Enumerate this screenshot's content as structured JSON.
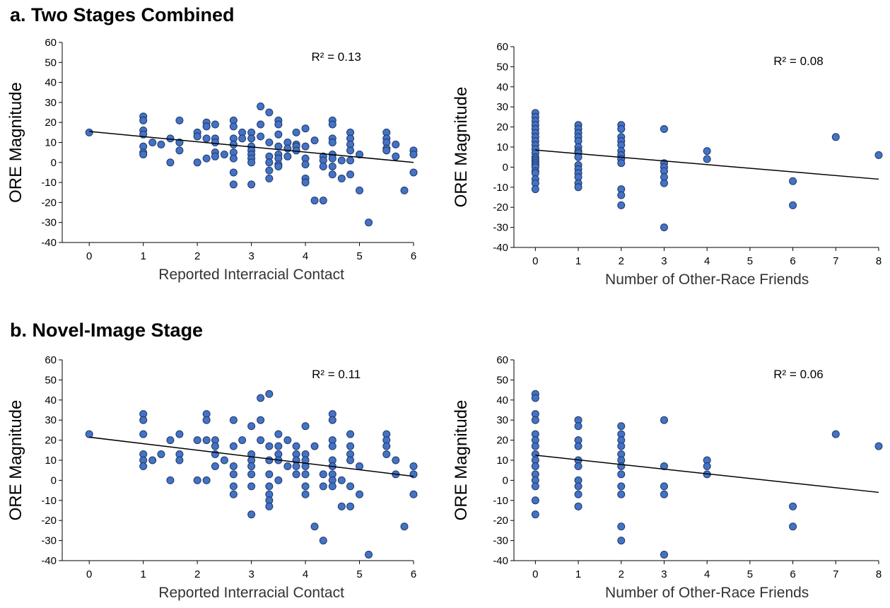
{
  "sections": [
    {
      "title": "a. Two Stages Combined"
    },
    {
      "title": "b. Novel-Image Stage"
    }
  ],
  "chart_data": [
    {
      "id": "a-left",
      "type": "scatter",
      "xlabel": "Reported Interracial Contact",
      "ylabel": "ORE Magnitude",
      "annotation": "R² = 0.13",
      "xlim": [
        -0.5,
        6
      ],
      "ylim": [
        -40,
        60
      ],
      "xticks": [
        0,
        1,
        2,
        3,
        4,
        5,
        6
      ],
      "yticks": [
        -40,
        -30,
        -20,
        -10,
        0,
        10,
        20,
        30,
        40,
        50,
        60
      ],
      "trendline": {
        "x": [
          0,
          6
        ],
        "y": [
          15.5,
          0
        ]
      },
      "marker_color": "#4472C4",
      "points": [
        [
          0,
          15
        ],
        [
          1,
          23
        ],
        [
          1,
          21
        ],
        [
          1,
          16
        ],
        [
          1,
          14
        ],
        [
          1,
          8
        ],
        [
          1,
          5
        ],
        [
          1,
          4
        ],
        [
          1.17,
          10
        ],
        [
          1.33,
          9
        ],
        [
          1.5,
          12
        ],
        [
          1.5,
          0
        ],
        [
          1.67,
          21
        ],
        [
          1.67,
          10
        ],
        [
          1.67,
          6
        ],
        [
          2,
          15
        ],
        [
          2,
          13
        ],
        [
          2,
          0
        ],
        [
          2.17,
          20
        ],
        [
          2.17,
          18
        ],
        [
          2.17,
          12
        ],
        [
          2.17,
          2
        ],
        [
          2.33,
          19
        ],
        [
          2.33,
          12
        ],
        [
          2.33,
          10
        ],
        [
          2.33,
          5
        ],
        [
          2.33,
          3
        ],
        [
          2.5,
          4
        ],
        [
          2.67,
          21
        ],
        [
          2.67,
          18
        ],
        [
          2.67,
          12
        ],
        [
          2.67,
          9
        ],
        [
          2.67,
          5
        ],
        [
          2.67,
          2
        ],
        [
          2.67,
          -5
        ],
        [
          2.67,
          -11
        ],
        [
          2.83,
          15
        ],
        [
          2.83,
          12
        ],
        [
          3,
          15
        ],
        [
          3,
          12
        ],
        [
          3,
          8
        ],
        [
          3,
          6
        ],
        [
          3,
          4
        ],
        [
          3,
          2
        ],
        [
          3,
          0
        ],
        [
          3,
          -11
        ],
        [
          3.17,
          28
        ],
        [
          3.17,
          19
        ],
        [
          3.17,
          13
        ],
        [
          3.33,
          25
        ],
        [
          3.33,
          10
        ],
        [
          3.33,
          3
        ],
        [
          3.33,
          0
        ],
        [
          3.33,
          -4
        ],
        [
          3.33,
          -8
        ],
        [
          3.5,
          21
        ],
        [
          3.5,
          19
        ],
        [
          3.5,
          14
        ],
        [
          3.5,
          8
        ],
        [
          3.5,
          4
        ],
        [
          3.5,
          2
        ],
        [
          3.5,
          -1
        ],
        [
          3.5,
          -2
        ],
        [
          3.67,
          10
        ],
        [
          3.67,
          7
        ],
        [
          3.67,
          3
        ],
        [
          3.83,
          15
        ],
        [
          3.83,
          9
        ],
        [
          3.83,
          8
        ],
        [
          3.83,
          6
        ],
        [
          4,
          17
        ],
        [
          4,
          8
        ],
        [
          4,
          2
        ],
        [
          4,
          -1
        ],
        [
          4,
          -8
        ],
        [
          4,
          -10
        ],
        [
          4.17,
          11
        ],
        [
          4.17,
          -19
        ],
        [
          4.33,
          3
        ],
        [
          4.33,
          1
        ],
        [
          4.33,
          -2
        ],
        [
          4.33,
          -19
        ],
        [
          4.5,
          21
        ],
        [
          4.5,
          19
        ],
        [
          4.5,
          12
        ],
        [
          4.5,
          10
        ],
        [
          4.5,
          4
        ],
        [
          4.5,
          2
        ],
        [
          4.5,
          -2
        ],
        [
          4.5,
          -6
        ],
        [
          4.67,
          1
        ],
        [
          4.67,
          -8
        ],
        [
          4.83,
          15
        ],
        [
          4.83,
          12
        ],
        [
          4.83,
          9
        ],
        [
          4.83,
          6
        ],
        [
          4.83,
          1
        ],
        [
          4.83,
          -6
        ],
        [
          5,
          4
        ],
        [
          5,
          -14
        ],
        [
          5.17,
          -30
        ],
        [
          5.5,
          15
        ],
        [
          5.5,
          12
        ],
        [
          5.5,
          10
        ],
        [
          5.5,
          7
        ],
        [
          5.5,
          6
        ],
        [
          5.67,
          9
        ],
        [
          5.67,
          3
        ],
        [
          5.83,
          -14
        ],
        [
          6,
          6
        ],
        [
          6,
          4
        ],
        [
          6,
          -5
        ]
      ]
    },
    {
      "id": "a-right",
      "type": "scatter",
      "xlabel": "Number of Other-Race Friends",
      "ylabel": "ORE Magnitude",
      "annotation": "R² = 0.08",
      "xlim": [
        -0.5,
        8
      ],
      "ylim": [
        -40,
        60
      ],
      "xticks": [
        0,
        1,
        2,
        3,
        4,
        5,
        6,
        7,
        8
      ],
      "yticks": [
        -40,
        -30,
        -20,
        -10,
        0,
        10,
        20,
        30,
        40,
        50,
        60
      ],
      "trendline": {
        "x": [
          0,
          8
        ],
        "y": [
          8.5,
          -6
        ]
      },
      "marker_color": "#4472C4",
      "points": [
        [
          0,
          27
        ],
        [
          0,
          25
        ],
        [
          0,
          23
        ],
        [
          0,
          21
        ],
        [
          0,
          19
        ],
        [
          0,
          17
        ],
        [
          0,
          15
        ],
        [
          0,
          13
        ],
        [
          0,
          11
        ],
        [
          0,
          9
        ],
        [
          0,
          7
        ],
        [
          0,
          5
        ],
        [
          0,
          4
        ],
        [
          0,
          3
        ],
        [
          0,
          2
        ],
        [
          0,
          1
        ],
        [
          0,
          0
        ],
        [
          0,
          -2
        ],
        [
          0,
          -3
        ],
        [
          0,
          -6
        ],
        [
          0,
          -8
        ],
        [
          0,
          -11
        ],
        [
          1,
          21
        ],
        [
          1,
          19
        ],
        [
          1,
          17
        ],
        [
          1,
          15
        ],
        [
          1,
          13
        ],
        [
          1,
          10
        ],
        [
          1,
          8
        ],
        [
          1,
          7
        ],
        [
          1,
          5
        ],
        [
          1,
          1
        ],
        [
          1,
          -1
        ],
        [
          1,
          -3
        ],
        [
          1,
          -5
        ],
        [
          1,
          -8
        ],
        [
          1,
          -10
        ],
        [
          2,
          21
        ],
        [
          2,
          19
        ],
        [
          2,
          15
        ],
        [
          2,
          13
        ],
        [
          2,
          11
        ],
        [
          2,
          8
        ],
        [
          2,
          6
        ],
        [
          2,
          4
        ],
        [
          2,
          2
        ],
        [
          2,
          -11
        ],
        [
          2,
          -14
        ],
        [
          2,
          -19
        ],
        [
          3,
          19
        ],
        [
          3,
          2
        ],
        [
          3,
          0
        ],
        [
          3,
          -2
        ],
        [
          3,
          -5
        ],
        [
          3,
          -8
        ],
        [
          3,
          -30
        ],
        [
          4,
          8
        ],
        [
          4,
          4
        ],
        [
          6,
          -7
        ],
        [
          6,
          -19
        ],
        [
          7,
          15
        ],
        [
          8,
          6
        ]
      ]
    },
    {
      "id": "b-left",
      "type": "scatter",
      "xlabel": "Reported Interracial Contact",
      "ylabel": "ORE Magnitude",
      "annotation": "R² = 0.11",
      "xlim": [
        -0.5,
        6
      ],
      "ylim": [
        -40,
        60
      ],
      "xticks": [
        0,
        1,
        2,
        3,
        4,
        5,
        6
      ],
      "yticks": [
        -40,
        -30,
        -20,
        -10,
        0,
        10,
        20,
        30,
        40,
        50,
        60
      ],
      "trendline": {
        "x": [
          0,
          6
        ],
        "y": [
          21.5,
          2
        ]
      },
      "marker_color": "#4472C4",
      "points": [
        [
          0,
          23
        ],
        [
          1,
          33
        ],
        [
          1,
          30
        ],
        [
          1,
          23
        ],
        [
          1,
          13
        ],
        [
          1,
          10
        ],
        [
          1,
          7
        ],
        [
          1.17,
          10
        ],
        [
          1.33,
          13
        ],
        [
          1.5,
          20
        ],
        [
          1.5,
          0
        ],
        [
          1.67,
          23
        ],
        [
          1.67,
          13
        ],
        [
          1.67,
          10
        ],
        [
          2,
          20
        ],
        [
          2,
          0
        ],
        [
          2.17,
          33
        ],
        [
          2.17,
          30
        ],
        [
          2.17,
          20
        ],
        [
          2.17,
          0
        ],
        [
          2.33,
          20
        ],
        [
          2.33,
          17
        ],
        [
          2.33,
          13
        ],
        [
          2.33,
          7
        ],
        [
          2.5,
          10
        ],
        [
          2.67,
          30
        ],
        [
          2.67,
          17
        ],
        [
          2.67,
          7
        ],
        [
          2.67,
          3
        ],
        [
          2.67,
          -3
        ],
        [
          2.67,
          -7
        ],
        [
          2.83,
          20
        ],
        [
          3,
          27
        ],
        [
          3,
          13
        ],
        [
          3,
          10
        ],
        [
          3,
          7
        ],
        [
          3,
          3
        ],
        [
          3,
          -3
        ],
        [
          3,
          -17
        ],
        [
          3.17,
          41
        ],
        [
          3.17,
          30
        ],
        [
          3.17,
          20
        ],
        [
          3.33,
          43
        ],
        [
          3.33,
          17
        ],
        [
          3.33,
          10
        ],
        [
          3.33,
          3
        ],
        [
          3.33,
          -3
        ],
        [
          3.33,
          -7
        ],
        [
          3.33,
          -10
        ],
        [
          3.33,
          -13
        ],
        [
          3.5,
          23
        ],
        [
          3.5,
          17
        ],
        [
          3.5,
          13
        ],
        [
          3.5,
          10
        ],
        [
          3.5,
          0
        ],
        [
          3.67,
          20
        ],
        [
          3.67,
          7
        ],
        [
          3.83,
          17
        ],
        [
          3.83,
          13
        ],
        [
          3.83,
          10
        ],
        [
          3.83,
          7
        ],
        [
          3.83,
          3
        ],
        [
          4,
          27
        ],
        [
          4,
          13
        ],
        [
          4,
          10
        ],
        [
          4,
          7
        ],
        [
          4,
          3
        ],
        [
          4,
          -3
        ],
        [
          4,
          -7
        ],
        [
          4.17,
          17
        ],
        [
          4.17,
          -23
        ],
        [
          4.33,
          -3
        ],
        [
          4.33,
          -30
        ],
        [
          4.33,
          3
        ],
        [
          4.5,
          33
        ],
        [
          4.5,
          30
        ],
        [
          4.5,
          20
        ],
        [
          4.5,
          17
        ],
        [
          4.5,
          10
        ],
        [
          4.5,
          7
        ],
        [
          4.5,
          3
        ],
        [
          4.5,
          0
        ],
        [
          4.5,
          -3
        ],
        [
          4.67,
          0
        ],
        [
          4.67,
          -13
        ],
        [
          4.83,
          23
        ],
        [
          4.83,
          17
        ],
        [
          4.83,
          13
        ],
        [
          4.83,
          10
        ],
        [
          4.83,
          -3
        ],
        [
          4.83,
          -13
        ],
        [
          5,
          7
        ],
        [
          5,
          -7
        ],
        [
          5.17,
          -37
        ],
        [
          5.5,
          23
        ],
        [
          5.5,
          20
        ],
        [
          5.5,
          17
        ],
        [
          5.5,
          13
        ],
        [
          5.67,
          10
        ],
        [
          5.67,
          3
        ],
        [
          5.83,
          -23
        ],
        [
          6,
          7
        ],
        [
          6,
          3
        ],
        [
          6,
          -7
        ]
      ]
    },
    {
      "id": "b-right",
      "type": "scatter",
      "xlabel": "Number of Other-Race Friends",
      "ylabel": "ORE Magnitude",
      "annotation": "R² = 0.06",
      "xlim": [
        -0.5,
        8
      ],
      "ylim": [
        -40,
        60
      ],
      "xticks": [
        0,
        1,
        2,
        3,
        4,
        5,
        6,
        7,
        8
      ],
      "yticks": [
        -40,
        -30,
        -20,
        -10,
        0,
        10,
        20,
        30,
        40,
        50,
        60
      ],
      "trendline": {
        "x": [
          0,
          8
        ],
        "y": [
          12.5,
          -6
        ]
      },
      "marker_color": "#4472C4",
      "points": [
        [
          0,
          43
        ],
        [
          0,
          41
        ],
        [
          0,
          33
        ],
        [
          0,
          30
        ],
        [
          0,
          23
        ],
        [
          0,
          20
        ],
        [
          0,
          17
        ],
        [
          0,
          13
        ],
        [
          0,
          10
        ],
        [
          0,
          7
        ],
        [
          0,
          3
        ],
        [
          0,
          0
        ],
        [
          0,
          -3
        ],
        [
          0,
          -10
        ],
        [
          0,
          -17
        ],
        [
          1,
          30
        ],
        [
          1,
          27
        ],
        [
          1,
          20
        ],
        [
          1,
          17
        ],
        [
          1,
          10
        ],
        [
          1,
          7
        ],
        [
          1,
          0
        ],
        [
          1,
          -3
        ],
        [
          1,
          -7
        ],
        [
          1,
          -13
        ],
        [
          2,
          27
        ],
        [
          2,
          23
        ],
        [
          2,
          20
        ],
        [
          2,
          17
        ],
        [
          2,
          13
        ],
        [
          2,
          10
        ],
        [
          2,
          7
        ],
        [
          2,
          3
        ],
        [
          2,
          -3
        ],
        [
          2,
          -7
        ],
        [
          2,
          -23
        ],
        [
          2,
          -30
        ],
        [
          3,
          30
        ],
        [
          3,
          7
        ],
        [
          3,
          -3
        ],
        [
          3,
          -7
        ],
        [
          3,
          -37
        ],
        [
          4,
          10
        ],
        [
          4,
          7
        ],
        [
          4,
          3
        ],
        [
          6,
          -13
        ],
        [
          6,
          -23
        ],
        [
          7,
          23
        ],
        [
          8,
          17
        ]
      ]
    }
  ]
}
